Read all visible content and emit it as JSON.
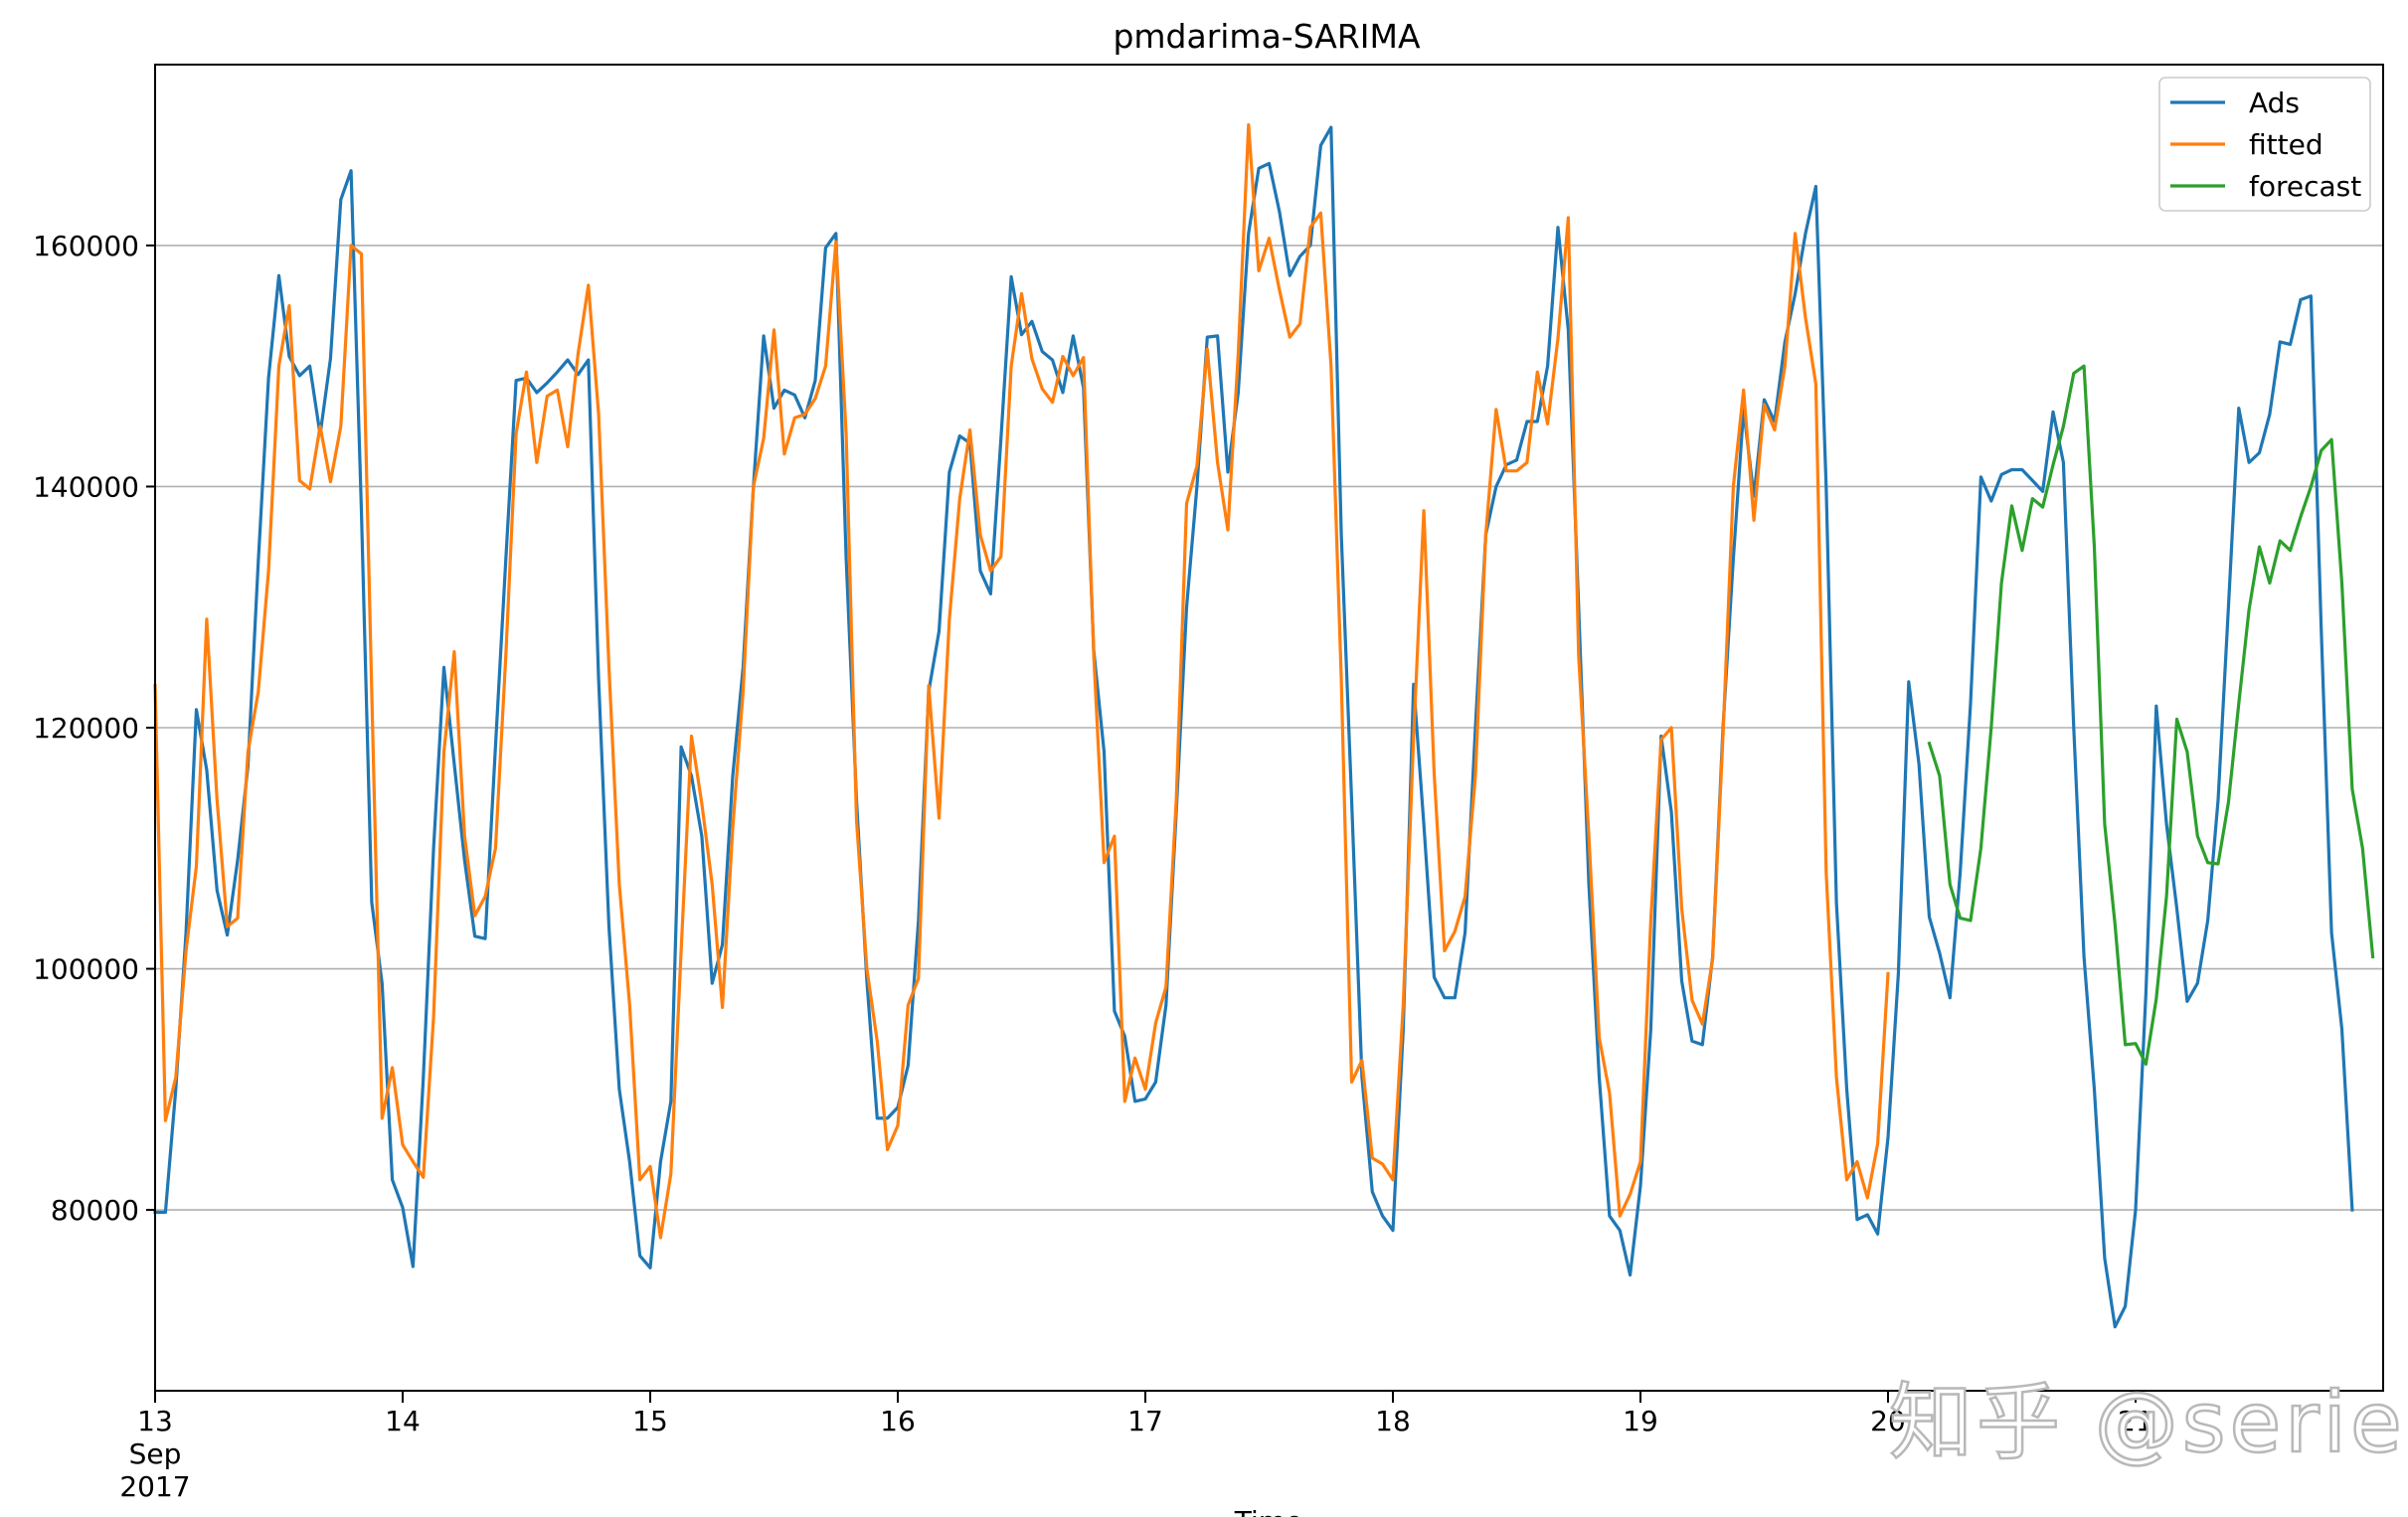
{
  "chart_data": {
    "type": "line",
    "title": "pmdarima-SARIMA",
    "xlabel": "Time",
    "ylabel": "",
    "ylim": [
      65000,
      175000
    ],
    "xlim": [
      0,
      216
    ],
    "grid": "horizontal",
    "legend_position": "top-right",
    "yticks": [
      80000,
      100000,
      120000,
      140000,
      160000
    ],
    "ytick_labels": [
      "80000",
      "100000",
      "120000",
      "140000",
      "160000"
    ],
    "xticks": [
      {
        "x": 0,
        "lines": [
          "13",
          "Sep",
          "2017"
        ]
      },
      {
        "x": 24,
        "lines": [
          "14"
        ]
      },
      {
        "x": 48,
        "lines": [
          "15"
        ]
      },
      {
        "x": 72,
        "lines": [
          "16"
        ]
      },
      {
        "x": 96,
        "lines": [
          "17"
        ]
      },
      {
        "x": 120,
        "lines": [
          "18"
        ]
      },
      {
        "x": 144,
        "lines": [
          "19"
        ]
      },
      {
        "x": 168,
        "lines": [
          "20"
        ]
      },
      {
        "x": 192,
        "lines": [
          "21"
        ]
      }
    ],
    "x_unit": "hours from 2017-09-13 00:00",
    "series": [
      {
        "name": "Ads",
        "color": "#1f77b4",
        "x_start": 0,
        "values": [
          79800,
          79800,
          90000,
          103000,
          121500,
          116500,
          106500,
          102800,
          109000,
          116800,
          133800,
          149000,
          157500,
          150800,
          149200,
          150000,
          144300,
          150600,
          163800,
          166200,
          138000,
          105500,
          98800,
          82500,
          80200,
          75300,
          91000,
          110000,
          125000,
          117000,
          109000,
          102700,
          102500,
          118500,
          134000,
          148800,
          149000,
          147800,
          148600,
          149500,
          150500,
          149300,
          150500,
          124000,
          103500,
          90000,
          84000,
          76200,
          75200,
          84000,
          89000,
          118400,
          116000,
          111000,
          98800,
          102000,
          116000,
          125000,
          140000,
          152500,
          146500,
          148000,
          147600,
          145700,
          148800,
          159800,
          161000,
          134000,
          114000,
          99000,
          87600,
          87600,
          88500,
          92000,
          104000,
          123000,
          128000,
          141200,
          144200,
          143600,
          133000,
          131100,
          144000,
          157400,
          152600,
          153700,
          151200,
          150500,
          147800,
          152500,
          148200,
          126400,
          118000,
          96500,
          94400,
          89000,
          89200,
          90600,
          97000,
          113000,
          130000,
          140000,
          152400,
          152500,
          141200,
          147800,
          161000,
          166400,
          166800,
          162800,
          157500,
          159100,
          160000,
          168300,
          169800,
          136000,
          114000,
          91000,
          81500,
          79500,
          78300,
          95000,
          123600,
          112000,
          99300,
          97600,
          97600,
          103000,
          120000,
          136000,
          140000,
          141800,
          142200,
          145400,
          145400,
          150000,
          161500,
          153000,
          130000,
          107000,
          91000,
          79500,
          78300,
          74600,
          82000,
          95000,
          119300,
          113000,
          99000,
          94000,
          93700,
          101000,
          120000,
          134000,
          146400,
          139200,
          147200,
          145400,
          152000,
          156000,
          161000,
          164900,
          140000,
          105500,
          90000,
          79200,
          79600,
          78000,
          86000,
          99600,
          123800,
          117000,
          104300,
          101300,
          97600,
          108000,
          122000,
          140800,
          138800,
          141000,
          141400,
          141400,
          140500,
          139600,
          146200,
          142000,
          120000,
          101000,
          90000,
          76000,
          70300,
          72000,
          80000,
          98000,
          121800,
          112000,
          105000,
          97300,
          98800,
          104000,
          114000,
          130000,
          146500,
          142000,
          142800,
          146000,
          152000,
          151800,
          155500,
          155800,
          128000,
          103000,
          95000,
          80000
        ]
      },
      {
        "name": "fitted",
        "color": "#ff7f0e",
        "x_start": 0,
        "values": [
          123500,
          87400,
          91000,
          101500,
          108500,
          129000,
          114000,
          103500,
          104200,
          118000,
          123000,
          133000,
          150000,
          155000,
          140500,
          139800,
          145000,
          140400,
          145000,
          160000,
          159300,
          123000,
          87600,
          91800,
          85400,
          84000,
          82700,
          96000,
          118000,
          126300,
          111000,
          104400,
          106000,
          110000,
          126000,
          144400,
          149500,
          142000,
          147500,
          148000,
          143300,
          151000,
          156700,
          146000,
          125000,
          107000,
          97000,
          82500,
          83600,
          77700,
          83000,
          101500,
          119300,
          113700,
          107000,
          96800,
          111700,
          123000,
          140000,
          144000,
          153000,
          142700,
          145700,
          146000,
          147300,
          150000,
          160300,
          144300,
          112300,
          100000,
          94000,
          85000,
          87000,
          97000,
          99200,
          123500,
          112500,
          129000,
          139000,
          144700,
          136000,
          133000,
          134200,
          150000,
          156000,
          150600,
          148100,
          147000,
          150800,
          149200,
          150700,
          126000,
          108800,
          111000,
          89000,
          92600,
          90000,
          95500,
          98500,
          114000,
          138600,
          141700,
          151400,
          142000,
          136400,
          151000,
          170000,
          157900,
          160600,
          156300,
          152400,
          153500,
          161500,
          162700,
          150000,
          124000,
          90600,
          92400,
          84300,
          83800,
          82500,
          97000,
          119200,
          138000,
          116200,
          101500,
          103100,
          106000,
          116000,
          136000,
          146400,
          141300,
          141300,
          142000,
          149500,
          145200,
          152300,
          162300,
          126000,
          111000,
          94300,
          89700,
          79500,
          81300,
          84000,
          104000,
          119000,
          120000,
          105000,
          97400,
          95400,
          100800,
          119300,
          140000,
          148000,
          137200,
          146800,
          144700,
          150000,
          161000,
          154000,
          148500,
          108000,
          91000,
          82500,
          84000,
          81000,
          85500,
          99600
        ]
      },
      {
        "name": "forecast",
        "color": "#2ca02c",
        "x_start": 172,
        "values": [
          118700,
          116000,
          107000,
          104200,
          104000,
          110000,
          120000,
          132000,
          138400,
          134700,
          139000,
          138300,
          141800,
          145000,
          149400,
          150000,
          135000,
          112000,
          103700,
          93700,
          93800,
          92100,
          97500,
          106000,
          120700,
          118000,
          111000,
          108800,
          108700,
          113800,
          122000,
          129800,
          135000,
          132000,
          135500,
          134700,
          137500,
          140000,
          143000,
          143900,
          132000,
          114900,
          110000,
          101000
        ]
      }
    ]
  },
  "watermark": {
    "text": "知乎 @seriesc"
  }
}
